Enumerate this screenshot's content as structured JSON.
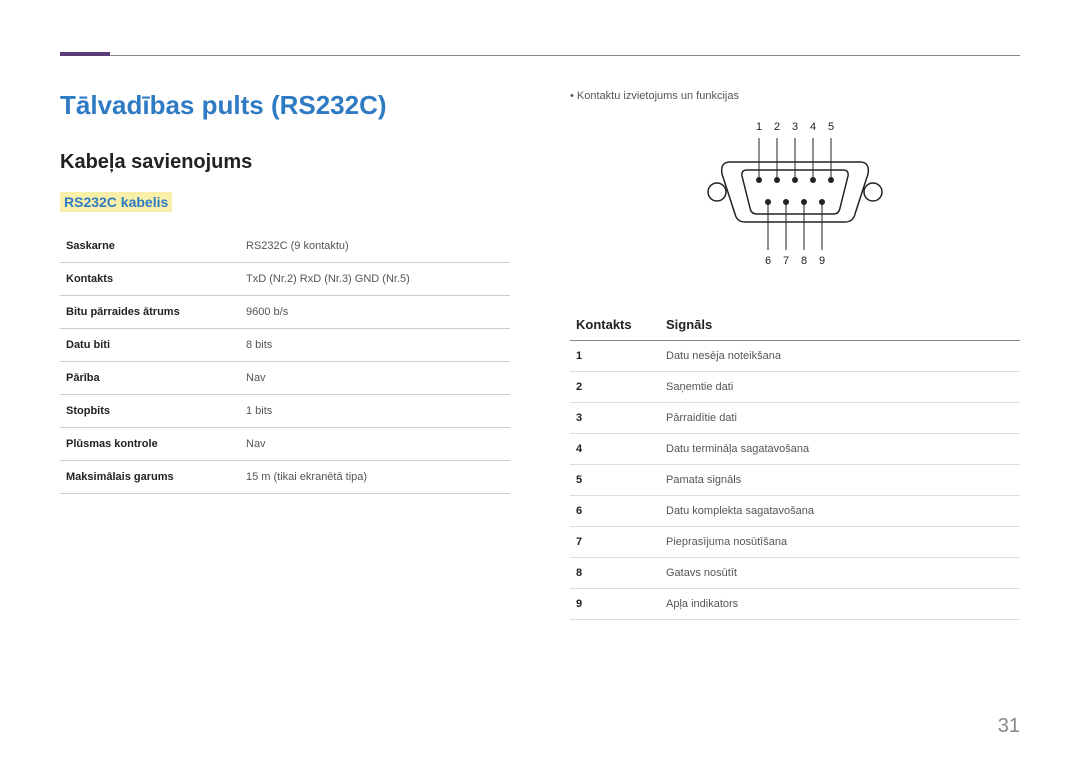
{
  "title": "Tālvadības pults (RS232C)",
  "subtitle": "Kabeļa savienojums",
  "section_label": "RS232C kabelis",
  "specs": [
    {
      "label": "Saskarne",
      "value": "RS232C (9 kontaktu)"
    },
    {
      "label": "Kontakts",
      "value": "TxD (Nr.2) RxD (Nr.3) GND (Nr.5)"
    },
    {
      "label": "Bitu pārraides ātrums",
      "value": "9600 b/s"
    },
    {
      "label": "Datu biti",
      "value": "8 bits"
    },
    {
      "label": "Pārība",
      "value": "Nav"
    },
    {
      "label": "Stopbits",
      "value": "1 bits"
    },
    {
      "label": "Plūsmas kontrole",
      "value": "Nav"
    },
    {
      "label": "Maksimālais garums",
      "value": "15 m (tikai ekranētā tipa)"
    }
  ],
  "bullet_text": "Kontaktu izvietojums un funkcijas",
  "pin_header": {
    "col1": "Kontakts",
    "col2": "Signāls"
  },
  "pins": [
    {
      "n": "1",
      "sig": "Datu nesēja noteikšana"
    },
    {
      "n": "2",
      "sig": "Saņemtie dati"
    },
    {
      "n": "3",
      "sig": "Pārraidītie dati"
    },
    {
      "n": "4",
      "sig": "Datu termināļa sagatavošana"
    },
    {
      "n": "5",
      "sig": "Pamata signāls"
    },
    {
      "n": "6",
      "sig": "Datu komplekta sagatavošana"
    },
    {
      "n": "7",
      "sig": "Pieprasījuma nosūtīšana"
    },
    {
      "n": "8",
      "sig": "Gatavs nosūtīt"
    },
    {
      "n": "9",
      "sig": "Apļa indikators"
    }
  ],
  "diagram": {
    "top_labels": [
      "1",
      "2",
      "3",
      "4",
      "5"
    ],
    "bottom_labels": [
      "6",
      "7",
      "8",
      "9"
    ],
    "stroke": "#222",
    "fill": "#222",
    "font_size": 11
  },
  "page_number": "31"
}
